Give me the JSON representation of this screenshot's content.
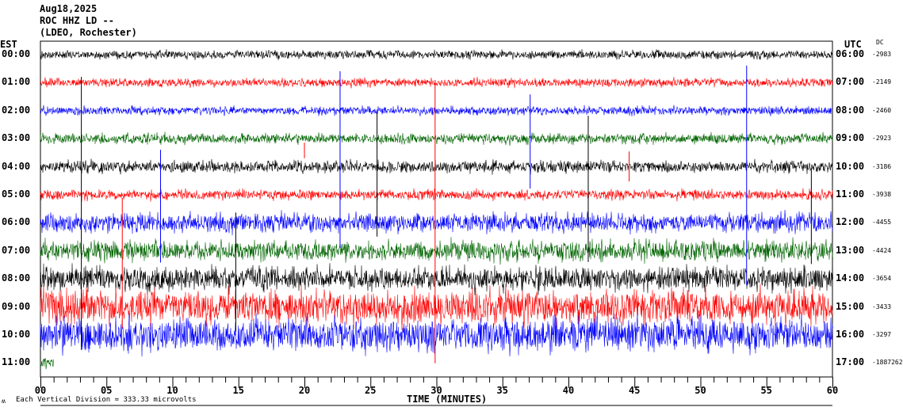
{
  "header": {
    "date": "Aug18,2025",
    "station": "ROC HHZ LD --",
    "network": "(LDEO, Rochester)"
  },
  "left_axis_title": "EST",
  "right_axis_title": "UTC",
  "dc_title": "DC",
  "footer": {
    "scale": "Each Vertical Division =  333.33 microvolts",
    "scale_icon": "ʍ"
  },
  "colors": {
    "cycle": [
      "#000000",
      "#ff0000",
      "#0000ff",
      "#006400"
    ]
  },
  "chart_data": {
    "type": "line",
    "title": "ROC HHZ LD -- helicorder",
    "xlabel": "TIME (MINUTES)",
    "xlim": [
      0,
      60
    ],
    "x_ticks": [
      "00",
      "05",
      "10",
      "15",
      "20",
      "25",
      "30",
      "35",
      "40",
      "45",
      "50",
      "55",
      "60"
    ],
    "rows": [
      {
        "est": "00:00",
        "utc": "06:00",
        "dc": "-2983",
        "amplitude": 0.25
      },
      {
        "est": "01:00",
        "utc": "07:00",
        "dc": "-2149",
        "amplitude": 0.25
      },
      {
        "est": "02:00",
        "utc": "08:00",
        "dc": "-2460",
        "amplitude": 0.25
      },
      {
        "est": "03:00",
        "utc": "09:00",
        "dc": "-2923",
        "amplitude": 0.3
      },
      {
        "est": "04:00",
        "utc": "10:00",
        "dc": "-3186",
        "amplitude": 0.35
      },
      {
        "est": "05:00",
        "utc": "11:00",
        "dc": "-3938",
        "amplitude": 0.3
      },
      {
        "est": "06:00",
        "utc": "12:00",
        "dc": "-4455",
        "amplitude": 0.55
      },
      {
        "est": "07:00",
        "utc": "13:00",
        "dc": "-4424",
        "amplitude": 0.6
      },
      {
        "est": "08:00",
        "utc": "14:00",
        "dc": "-3654",
        "amplitude": 0.7
      },
      {
        "est": "09:00",
        "utc": "15:00",
        "dc": "-3433",
        "amplitude": 1.0
      },
      {
        "est": "10:00",
        "utc": "16:00",
        "dc": "-3297",
        "amplitude": 1.0
      },
      {
        "est": "11:00",
        "utc": "17:00",
        "dc": "-1887262",
        "amplitude": 0.3,
        "partial_minutes": 1
      }
    ]
  }
}
